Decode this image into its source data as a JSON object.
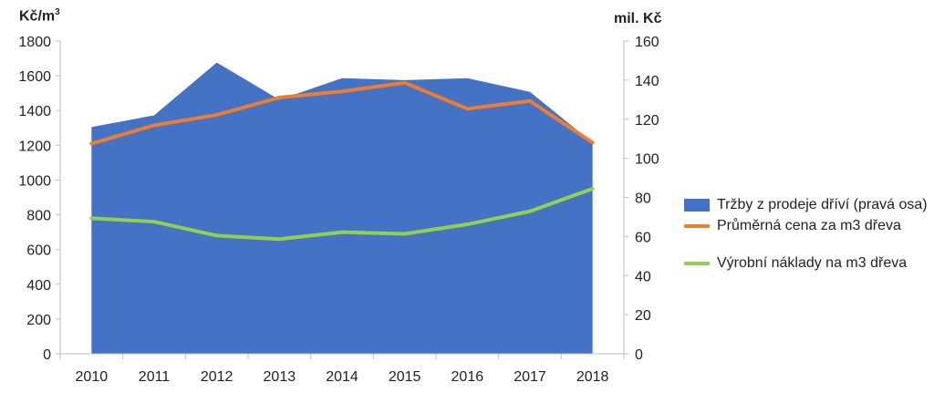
{
  "chart_data": {
    "type": "area+line",
    "categories": [
      "2010",
      "2011",
      "2012",
      "2013",
      "2014",
      "2015",
      "2016",
      "2017",
      "2018"
    ],
    "y_left": {
      "label": "Kč/m",
      "label_sup": "3",
      "ylim": [
        0,
        1800
      ],
      "ticks": [
        "0",
        "200",
        "400",
        "600",
        "800",
        "1000",
        "1200",
        "1400",
        "1600",
        "1800"
      ]
    },
    "y_right": {
      "label": "mil. Kč",
      "ylim": [
        0,
        160
      ],
      "ticks": [
        "0",
        "20",
        "40",
        "60",
        "80",
        "100",
        "120",
        "140",
        "160"
      ]
    },
    "series": [
      {
        "name": "Tržby z prodeje dříví (pravá osa)",
        "type": "area",
        "axis": "right",
        "color": "#4472C4",
        "values": [
          116,
          122,
          149,
          130,
          141,
          140,
          141,
          134,
          108
        ]
      },
      {
        "name": "Průměrná cena za m3 dřeva",
        "type": "line",
        "axis": "left",
        "color": "#ED7D31",
        "values": [
          1210,
          1315,
          1375,
          1475,
          1510,
          1560,
          1410,
          1455,
          1215
        ]
      },
      {
        "name": "Výrobní náklady na m3 dřeva",
        "type": "line",
        "axis": "left",
        "color": "#92D050",
        "values": [
          780,
          760,
          680,
          660,
          700,
          690,
          745,
          820,
          950
        ]
      }
    ],
    "grid": false,
    "legend_position": "right"
  }
}
